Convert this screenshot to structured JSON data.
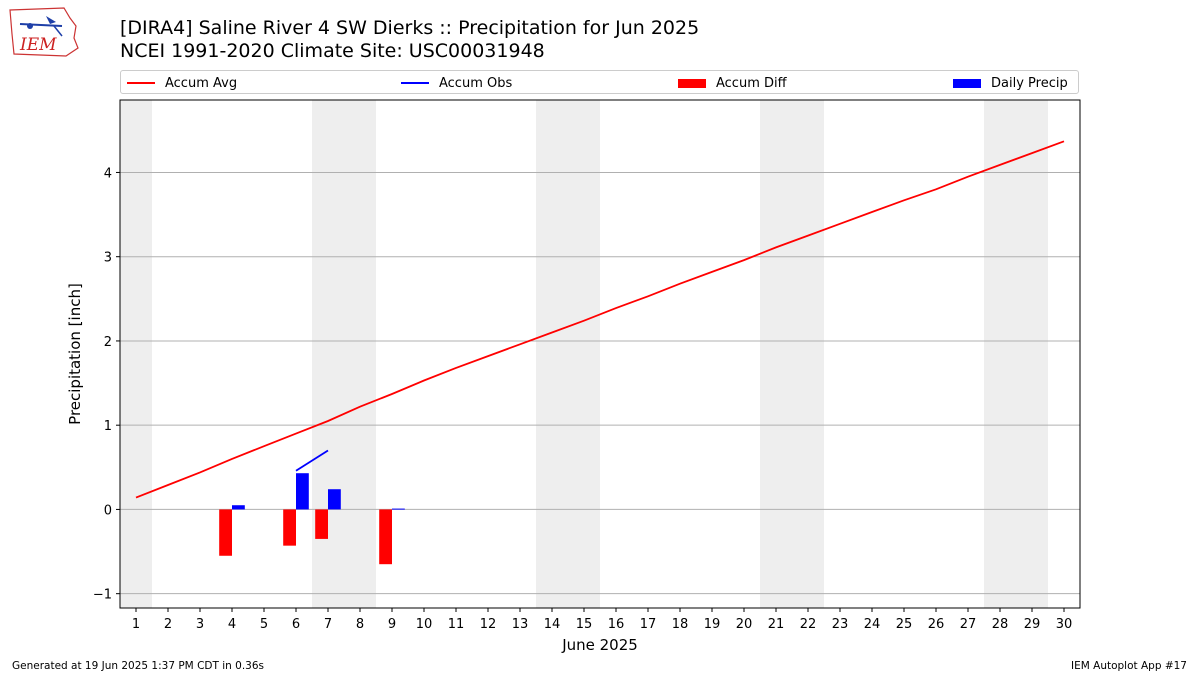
{
  "header": {
    "title_line1": "[DIRA4] Saline River 4 SW Dierks :: Precipitation for Jun 2025",
    "title_line2": "NCEI 1991-2020 Climate Site: USC00031948",
    "logo_text": "IEM"
  },
  "legend": {
    "items": [
      {
        "label": "Accum Avg",
        "color": "#ff0000",
        "kind": "line"
      },
      {
        "label": "Accum Obs",
        "color": "#0000ff",
        "kind": "line"
      },
      {
        "label": "Accum Diff",
        "color": "#ff0000",
        "kind": "box"
      },
      {
        "label": "Daily Precip",
        "color": "#0000ff",
        "kind": "box"
      }
    ]
  },
  "footer": {
    "left": "Generated at 19 Jun 2025 1:37 PM CDT in 0.36s",
    "right": "IEM Autoplot App #17"
  },
  "chart_data": {
    "type": "bar",
    "xlabel": "June 2025",
    "ylabel": "Precipitation [inch]",
    "x": [
      1,
      2,
      3,
      4,
      5,
      6,
      7,
      8,
      9,
      10,
      11,
      12,
      13,
      14,
      15,
      16,
      17,
      18,
      19,
      20,
      21,
      22,
      23,
      24,
      25,
      26,
      27,
      28,
      29,
      30
    ],
    "xlim": [
      0.5,
      30.5
    ],
    "ylim": [
      -1.17,
      4.86
    ],
    "yticks": [
      -1,
      0,
      1,
      2,
      3,
      4
    ],
    "grid": "horizontal",
    "legend_position": "top",
    "weekend_shading_days": [
      1,
      7,
      8,
      14,
      15,
      21,
      22,
      28,
      29
    ],
    "series": [
      {
        "name": "Accum Avg",
        "kind": "line",
        "color": "#ff0000",
        "x": [
          1,
          2,
          3,
          4,
          5,
          6,
          7,
          8,
          9,
          10,
          11,
          12,
          13,
          14,
          15,
          16,
          17,
          18,
          19,
          20,
          21,
          22,
          23,
          24,
          25,
          26,
          27,
          28,
          29,
          30
        ],
        "values": [
          0.14,
          0.29,
          0.44,
          0.6,
          0.75,
          0.9,
          1.05,
          1.22,
          1.37,
          1.53,
          1.68,
          1.82,
          1.96,
          2.1,
          2.24,
          2.39,
          2.53,
          2.68,
          2.82,
          2.96,
          3.11,
          3.25,
          3.39,
          3.53,
          3.67,
          3.8,
          3.95,
          4.09,
          4.23,
          4.37
        ]
      },
      {
        "name": "Accum Obs",
        "kind": "line",
        "color": "#0000ff",
        "x": [
          6,
          7
        ],
        "values": [
          0.46,
          0.7
        ]
      },
      {
        "name": "Accum Diff",
        "kind": "bar",
        "color": "#ff0000",
        "x": [
          4,
          6,
          7,
          9
        ],
        "values": [
          -0.55,
          -0.43,
          -0.35,
          -0.65
        ]
      },
      {
        "name": "Daily Precip",
        "kind": "bar",
        "color": "#0000ff",
        "x": [
          4,
          6,
          7,
          9
        ],
        "values": [
          0.05,
          0.43,
          0.24,
          0.01
        ]
      }
    ]
  }
}
